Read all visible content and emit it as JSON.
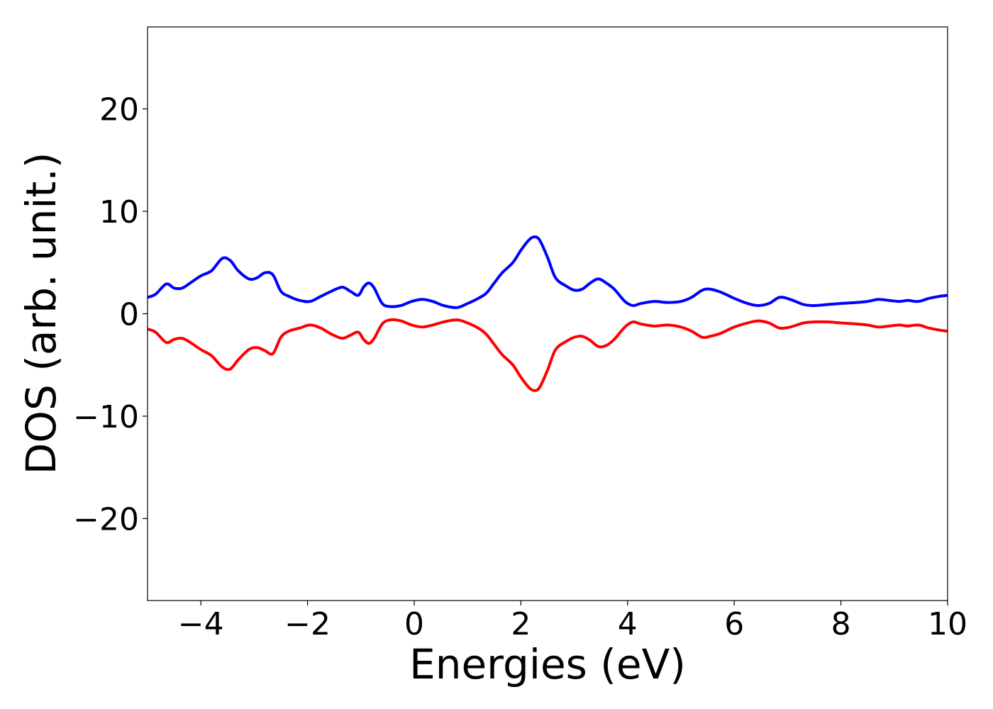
{
  "chart_data": {
    "type": "line",
    "title": "",
    "xlabel": "Energies (eV)",
    "ylabel": "DOS (arb. unit.)",
    "xlim": [
      -5,
      10
    ],
    "ylim": [
      -28,
      28
    ],
    "grid": false,
    "legend": "none",
    "x_ticks": [
      {
        "value": -4,
        "label": "−4"
      },
      {
        "value": -2,
        "label": "−2"
      },
      {
        "value": 0,
        "label": "0"
      },
      {
        "value": 2,
        "label": "2"
      },
      {
        "value": 4,
        "label": "4"
      },
      {
        "value": 6,
        "label": "6"
      },
      {
        "value": 8,
        "label": "8"
      },
      {
        "value": 10,
        "label": "10"
      }
    ],
    "y_ticks": [
      {
        "value": -20,
        "label": "−20"
      },
      {
        "value": -10,
        "label": "−10"
      },
      {
        "value": 0,
        "label": "0"
      },
      {
        "value": 10,
        "label": "10"
      },
      {
        "value": 20,
        "label": "20"
      }
    ],
    "series": [
      {
        "color": "#0000ff",
        "x": [
          -5.0,
          -4.85,
          -4.65,
          -4.5,
          -4.35,
          -4.2,
          -4.0,
          -3.8,
          -3.6,
          -3.45,
          -3.3,
          -3.1,
          -2.95,
          -2.8,
          -2.65,
          -2.5,
          -2.35,
          -2.15,
          -1.95,
          -1.75,
          -1.55,
          -1.35,
          -1.2,
          -1.05,
          -0.95,
          -0.85,
          -0.75,
          -0.6,
          -0.45,
          -0.25,
          -0.05,
          0.15,
          0.35,
          0.55,
          0.8,
          1.0,
          1.2,
          1.35,
          1.5,
          1.65,
          1.85,
          2.0,
          2.15,
          2.25,
          2.35,
          2.5,
          2.65,
          2.85,
          3.0,
          3.15,
          3.3,
          3.45,
          3.6,
          3.75,
          3.95,
          4.1,
          4.25,
          4.5,
          4.75,
          5.0,
          5.2,
          5.4,
          5.55,
          5.75,
          6.0,
          6.25,
          6.45,
          6.65,
          6.85,
          7.05,
          7.3,
          7.5,
          7.75,
          8.0,
          8.3,
          8.5,
          8.7,
          8.9,
          9.1,
          9.25,
          9.45,
          9.65,
          9.85,
          10.0
        ],
        "y": [
          1.6,
          1.9,
          2.9,
          2.5,
          2.5,
          3.0,
          3.7,
          4.2,
          5.4,
          5.2,
          4.2,
          3.4,
          3.5,
          4.0,
          3.8,
          2.2,
          1.7,
          1.3,
          1.2,
          1.7,
          2.2,
          2.6,
          2.2,
          1.8,
          2.6,
          3.0,
          2.5,
          1.0,
          0.7,
          0.8,
          1.2,
          1.4,
          1.2,
          0.8,
          0.6,
          1.0,
          1.5,
          2.0,
          3.0,
          4.0,
          5.0,
          6.2,
          7.2,
          7.5,
          7.2,
          5.5,
          3.5,
          2.7,
          2.3,
          2.4,
          3.0,
          3.4,
          3.0,
          2.4,
          1.2,
          0.8,
          1.0,
          1.2,
          1.1,
          1.2,
          1.6,
          2.3,
          2.4,
          2.1,
          1.5,
          1.0,
          0.8,
          1.0,
          1.6,
          1.4,
          0.9,
          0.8,
          0.9,
          1.0,
          1.1,
          1.2,
          1.4,
          1.3,
          1.2,
          1.3,
          1.2,
          1.5,
          1.7,
          1.8
        ]
      },
      {
        "color": "#ff0000",
        "x": [
          -5.0,
          -4.85,
          -4.65,
          -4.5,
          -4.35,
          -4.2,
          -4.0,
          -3.8,
          -3.6,
          -3.45,
          -3.3,
          -3.1,
          -2.95,
          -2.8,
          -2.65,
          -2.5,
          -2.35,
          -2.15,
          -1.95,
          -1.75,
          -1.55,
          -1.35,
          -1.2,
          -1.05,
          -0.95,
          -0.85,
          -0.75,
          -0.6,
          -0.45,
          -0.25,
          -0.05,
          0.15,
          0.35,
          0.55,
          0.8,
          1.0,
          1.2,
          1.35,
          1.5,
          1.65,
          1.85,
          2.0,
          2.15,
          2.25,
          2.35,
          2.5,
          2.65,
          2.85,
          3.0,
          3.15,
          3.3,
          3.45,
          3.6,
          3.75,
          3.95,
          4.1,
          4.25,
          4.5,
          4.75,
          5.0,
          5.2,
          5.4,
          5.55,
          5.75,
          6.0,
          6.25,
          6.45,
          6.65,
          6.85,
          7.05,
          7.3,
          7.5,
          7.75,
          8.0,
          8.3,
          8.5,
          8.7,
          8.9,
          9.1,
          9.25,
          9.45,
          9.65,
          9.85,
          10.0
        ],
        "y": [
          -1.5,
          -1.8,
          -2.8,
          -2.5,
          -2.4,
          -2.8,
          -3.5,
          -4.1,
          -5.2,
          -5.4,
          -4.5,
          -3.5,
          -3.3,
          -3.6,
          -3.9,
          -2.3,
          -1.7,
          -1.4,
          -1.1,
          -1.4,
          -2.0,
          -2.4,
          -2.1,
          -1.8,
          -2.5,
          -2.9,
          -2.4,
          -1.0,
          -0.6,
          -0.7,
          -1.1,
          -1.3,
          -1.1,
          -0.8,
          -0.6,
          -0.9,
          -1.4,
          -2.0,
          -3.0,
          -4.0,
          -5.0,
          -6.2,
          -7.2,
          -7.5,
          -7.2,
          -5.5,
          -3.5,
          -2.7,
          -2.3,
          -2.2,
          -2.6,
          -3.2,
          -3.1,
          -2.5,
          -1.3,
          -0.8,
          -1.0,
          -1.2,
          -1.1,
          -1.3,
          -1.7,
          -2.3,
          -2.2,
          -1.9,
          -1.3,
          -0.9,
          -0.7,
          -0.9,
          -1.4,
          -1.3,
          -0.9,
          -0.8,
          -0.8,
          -0.9,
          -1.0,
          -1.1,
          -1.3,
          -1.2,
          -1.1,
          -1.2,
          -1.1,
          -1.4,
          -1.6,
          -1.7
        ]
      }
    ]
  }
}
